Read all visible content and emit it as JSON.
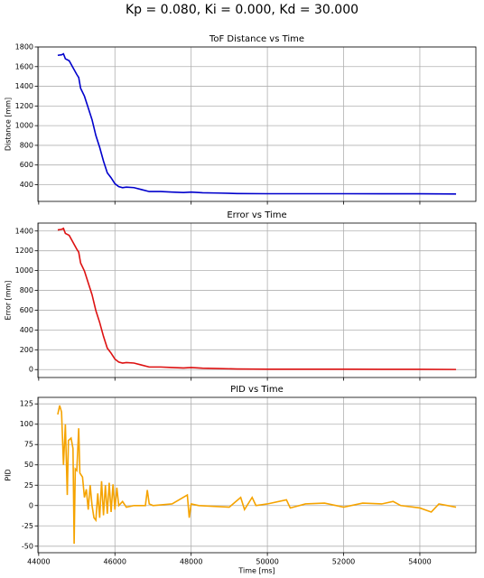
{
  "suptitle": "Kp = 0.080, Ki = 0.000, Kd = 30.000",
  "chart_data": [
    {
      "type": "line",
      "title": "ToF Distance vs Time",
      "ylabel": "Distance [mm]",
      "grid": true,
      "x": [
        44500,
        44600,
        44650,
        44700,
        44800,
        44900,
        45000,
        45050,
        45100,
        45200,
        45300,
        45400,
        45500,
        45600,
        45700,
        45750,
        45800,
        45900,
        46000,
        46100,
        46200,
        46300,
        46500,
        46700,
        46900,
        47200,
        47500,
        47800,
        48000,
        48300,
        48700,
        49200,
        50000,
        51000,
        52000,
        53000,
        54000,
        54950
      ],
      "series": [
        {
          "name": "Distance",
          "color": "#0000cc",
          "values": [
            1715,
            1720,
            1730,
            1680,
            1660,
            1590,
            1520,
            1490,
            1380,
            1300,
            1180,
            1060,
            900,
            780,
            640,
            580,
            520,
            470,
            410,
            380,
            370,
            375,
            370,
            350,
            330,
            330,
            325,
            320,
            325,
            318,
            315,
            310,
            308,
            308,
            308,
            307,
            307,
            305
          ]
        }
      ],
      "xlim": [
        43980,
        55470
      ],
      "xticks": [
        44000,
        46000,
        48000,
        50000,
        52000,
        54000
      ],
      "ylim": [
        230,
        1800
      ],
      "yticks": [
        400,
        600,
        800,
        1000,
        1200,
        1400,
        1600,
        1800
      ]
    },
    {
      "type": "line",
      "title": "Error vs Time",
      "ylabel": "Error [mm]",
      "grid": true,
      "x": [
        44500,
        44600,
        44650,
        44700,
        44800,
        44900,
        45000,
        45050,
        45100,
        45200,
        45300,
        45400,
        45500,
        45600,
        45700,
        45750,
        45800,
        45900,
        46000,
        46100,
        46200,
        46300,
        46500,
        46700,
        46900,
        47200,
        47500,
        47800,
        48000,
        48300,
        48700,
        49200,
        50000,
        51000,
        52000,
        53000,
        54000,
        54950
      ],
      "series": [
        {
          "name": "Error",
          "color": "#dd1111",
          "values": [
            1411,
            1416,
            1426,
            1376,
            1356,
            1286,
            1216,
            1186,
            1076,
            996,
            876,
            756,
            596,
            476,
            336,
            276,
            216,
            166,
            106,
            76,
            66,
            71,
            66,
            46,
            26,
            26,
            21,
            16,
            21,
            14,
            11,
            6,
            4,
            4,
            4,
            3,
            3,
            1
          ]
        }
      ],
      "xlim": [
        43980,
        55470
      ],
      "xticks": [
        44000,
        46000,
        48000,
        50000,
        52000,
        54000
      ],
      "ylim": [
        -80,
        1480
      ],
      "yticks": [
        0,
        200,
        400,
        600,
        800,
        1000,
        1200,
        1400
      ]
    },
    {
      "type": "line",
      "title": "PID vs Time",
      "ylabel": "PID",
      "xlabel": "Time [ms]",
      "grid": true,
      "x": [
        44500,
        44550,
        44600,
        44650,
        44700,
        44750,
        44780,
        44850,
        44900,
        44930,
        44960,
        45000,
        45050,
        45080,
        45150,
        45200,
        45250,
        45300,
        45350,
        45400,
        45450,
        45500,
        45550,
        45600,
        45650,
        45700,
        45750,
        45800,
        45850,
        45900,
        45950,
        46000,
        46050,
        46100,
        46200,
        46300,
        46500,
        46800,
        46850,
        46900,
        47000,
        47500,
        47900,
        47950,
        48000,
        48200,
        49000,
        49300,
        49400,
        49600,
        49700,
        50000,
        50500,
        50600,
        51000,
        51500,
        52000,
        52500,
        53000,
        53300,
        53500,
        54000,
        54300,
        54500,
        54950
      ],
      "series": [
        {
          "name": "PID",
          "color": "#f5a300",
          "values": [
            112,
            123,
            115,
            50,
            100,
            13,
            80,
            83,
            70,
            -47,
            45,
            43,
            95,
            40,
            35,
            10,
            20,
            -5,
            25,
            0,
            -15,
            -18,
            15,
            -15,
            30,
            -12,
            25,
            -10,
            28,
            -8,
            26,
            -5,
            22,
            0,
            5,
            -2,
            0,
            0,
            19,
            2,
            0,
            2,
            13,
            -15,
            2,
            0,
            -2,
            10,
            -5,
            10,
            0,
            2,
            7,
            -3,
            2,
            3,
            -2,
            3,
            2,
            5,
            0,
            -3,
            -8,
            2,
            -2
          ]
        }
      ],
      "xlim": [
        43980,
        55470
      ],
      "xticks": [
        44000,
        46000,
        48000,
        50000,
        52000,
        54000
      ],
      "ylim": [
        -58,
        133
      ],
      "yticks": [
        -50,
        -25,
        0,
        25,
        50,
        75,
        100,
        125
      ]
    }
  ]
}
